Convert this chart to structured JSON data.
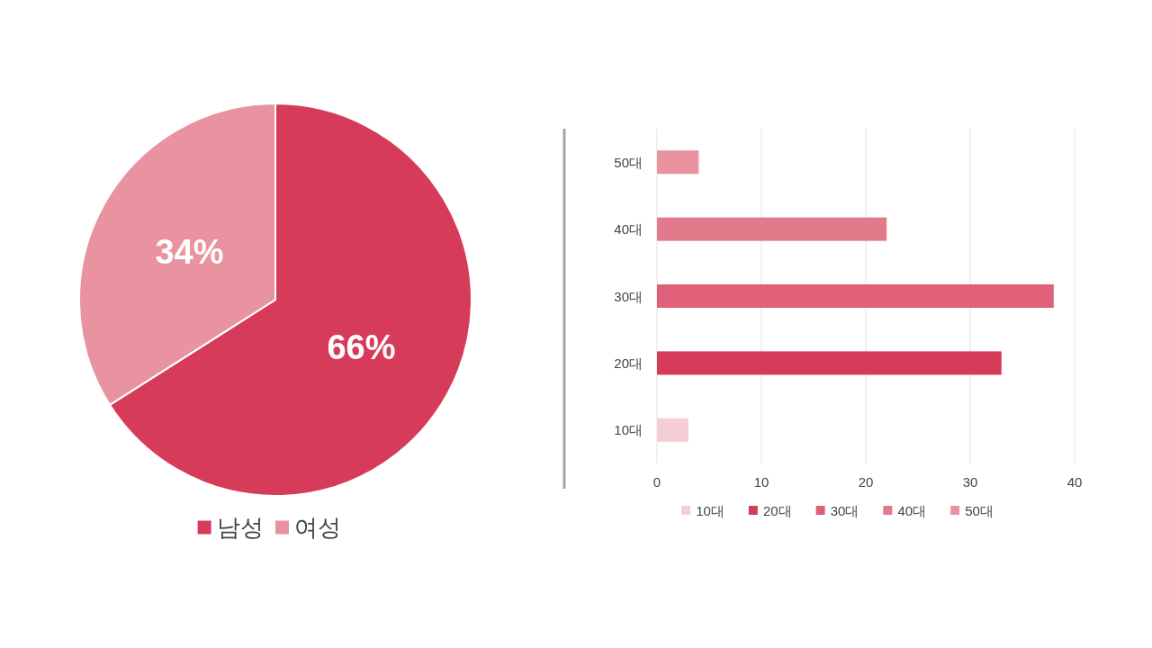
{
  "chart_data": [
    {
      "type": "pie",
      "categories": [
        "남성",
        "여성"
      ],
      "values": [
        66,
        34
      ],
      "colors": [
        "#d63c5a",
        "#e8939f"
      ],
      "value_labels": [
        "66%",
        "34%"
      ],
      "legend": "bottom"
    },
    {
      "type": "bar",
      "orientation": "horizontal",
      "categories": [
        "50대",
        "40대",
        "30대",
        "20대",
        "10대"
      ],
      "series": [
        {
          "name": "10대",
          "color": "#f5cdd4",
          "values": [
            null,
            null,
            null,
            null,
            3
          ]
        },
        {
          "name": "20대",
          "color": "#d63c5a",
          "values": [
            null,
            null,
            null,
            33,
            null
          ]
        },
        {
          "name": "30대",
          "color": "#e0607a",
          "values": [
            null,
            null,
            38,
            null,
            null
          ]
        },
        {
          "name": "40대",
          "color": "#e27a8c",
          "values": [
            null,
            22,
            null,
            null,
            null
          ]
        },
        {
          "name": "50대",
          "color": "#e8939f",
          "values": [
            4,
            null,
            null,
            null,
            null
          ]
        }
      ],
      "xlim": [
        0,
        40
      ],
      "xticks": [
        0,
        10,
        20,
        30,
        40
      ],
      "grid": "x",
      "legend": "bottom"
    }
  ]
}
